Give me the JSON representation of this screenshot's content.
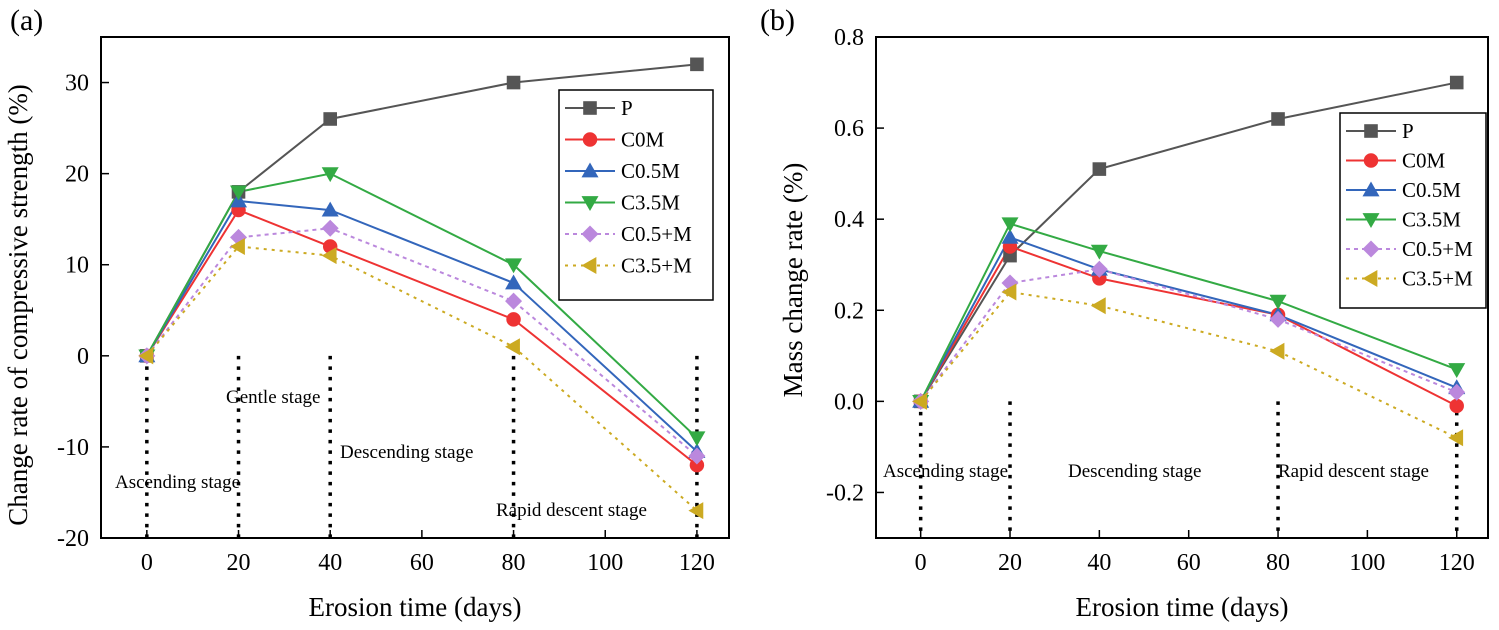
{
  "chart_data": [
    {
      "type": "line",
      "panel_label": "(a)",
      "xlabel": "Erosion time (days)",
      "ylabel": "Change rate of compressive strength (%)",
      "xlim": [
        -10,
        127
      ],
      "ylim": [
        -20,
        35
      ],
      "xticks": [
        0,
        20,
        40,
        60,
        80,
        100,
        120
      ],
      "yticks": [
        -20,
        -10,
        0,
        10,
        20,
        30
      ],
      "ytick_labels": [
        "-20",
        "-10",
        "0",
        "10",
        "20",
        "30"
      ],
      "x": [
        0,
        20,
        40,
        80,
        120
      ],
      "series": [
        {
          "name": "P",
          "values": [
            0,
            18,
            26,
            30,
            32
          ],
          "color": "#555555",
          "marker": "square",
          "dash": "solid"
        },
        {
          "name": "C0M",
          "values": [
            0,
            16,
            12,
            4,
            -12
          ],
          "color": "#ee3333",
          "marker": "circle",
          "dash": "solid"
        },
        {
          "name": "C0.5M",
          "values": [
            0,
            17,
            16,
            8,
            -10.5
          ],
          "color": "#3366bb",
          "marker": "triangle-up",
          "dash": "solid"
        },
        {
          "name": "C3.5M",
          "values": [
            0,
            18,
            20,
            10,
            -9
          ],
          "color": "#33aa44",
          "marker": "triangle-down",
          "dash": "solid"
        },
        {
          "name": "C0.5+M",
          "values": [
            0,
            13,
            14,
            6,
            -11
          ],
          "color": "#bb88dd",
          "marker": "diamond",
          "dash": "dash"
        },
        {
          "name": "C3.5+M",
          "values": [
            0,
            12,
            11,
            1,
            -17
          ],
          "color": "#ccaa22",
          "marker": "triangle-left",
          "dash": "dot"
        }
      ],
      "vlines": [
        0,
        20,
        40,
        80,
        120
      ],
      "annotations": [
        "Ascending stage",
        "Gentle stage",
        "Descending stage",
        "Rapid descent stage"
      ],
      "legend": "top-right"
    },
    {
      "type": "line",
      "panel_label": "(b)",
      "xlabel": "Erosion time (days)",
      "ylabel": "Mass change rate (%)",
      "xlim": [
        -10,
        127
      ],
      "ylim": [
        -0.3,
        0.8
      ],
      "xticks": [
        0,
        20,
        40,
        60,
        80,
        100,
        120
      ],
      "yticks": [
        -0.2,
        0.0,
        0.2,
        0.4,
        0.6,
        0.8
      ],
      "ytick_labels": [
        "-0.2",
        "0.0",
        "0.2",
        "0.4",
        "0.6",
        "0.8"
      ],
      "x": [
        0,
        20,
        40,
        80,
        120
      ],
      "series": [
        {
          "name": "P",
          "values": [
            0,
            0.32,
            0.51,
            0.62,
            0.7
          ],
          "color": "#555555",
          "marker": "square",
          "dash": "solid"
        },
        {
          "name": "C0M",
          "values": [
            0,
            0.34,
            0.27,
            0.19,
            -0.01
          ],
          "color": "#ee3333",
          "marker": "circle",
          "dash": "solid"
        },
        {
          "name": "C0.5M",
          "values": [
            0,
            0.36,
            0.29,
            0.19,
            0.03
          ],
          "color": "#3366bb",
          "marker": "triangle-up",
          "dash": "solid"
        },
        {
          "name": "C3.5M",
          "values": [
            0,
            0.39,
            0.33,
            0.22,
            0.07
          ],
          "color": "#33aa44",
          "marker": "triangle-down",
          "dash": "solid"
        },
        {
          "name": "C0.5+M",
          "values": [
            0,
            0.26,
            0.29,
            0.18,
            0.02
          ],
          "color": "#bb88dd",
          "marker": "diamond",
          "dash": "dash"
        },
        {
          "name": "C3.5+M",
          "values": [
            0,
            0.24,
            0.21,
            0.11,
            -0.08
          ],
          "color": "#ccaa22",
          "marker": "triangle-left",
          "dash": "dot"
        }
      ],
      "vlines": [
        0,
        20,
        80,
        120
      ],
      "annotations": [
        "Ascending stage",
        "Descending stage",
        "Rapid descent stage"
      ],
      "legend": "top-right"
    }
  ]
}
